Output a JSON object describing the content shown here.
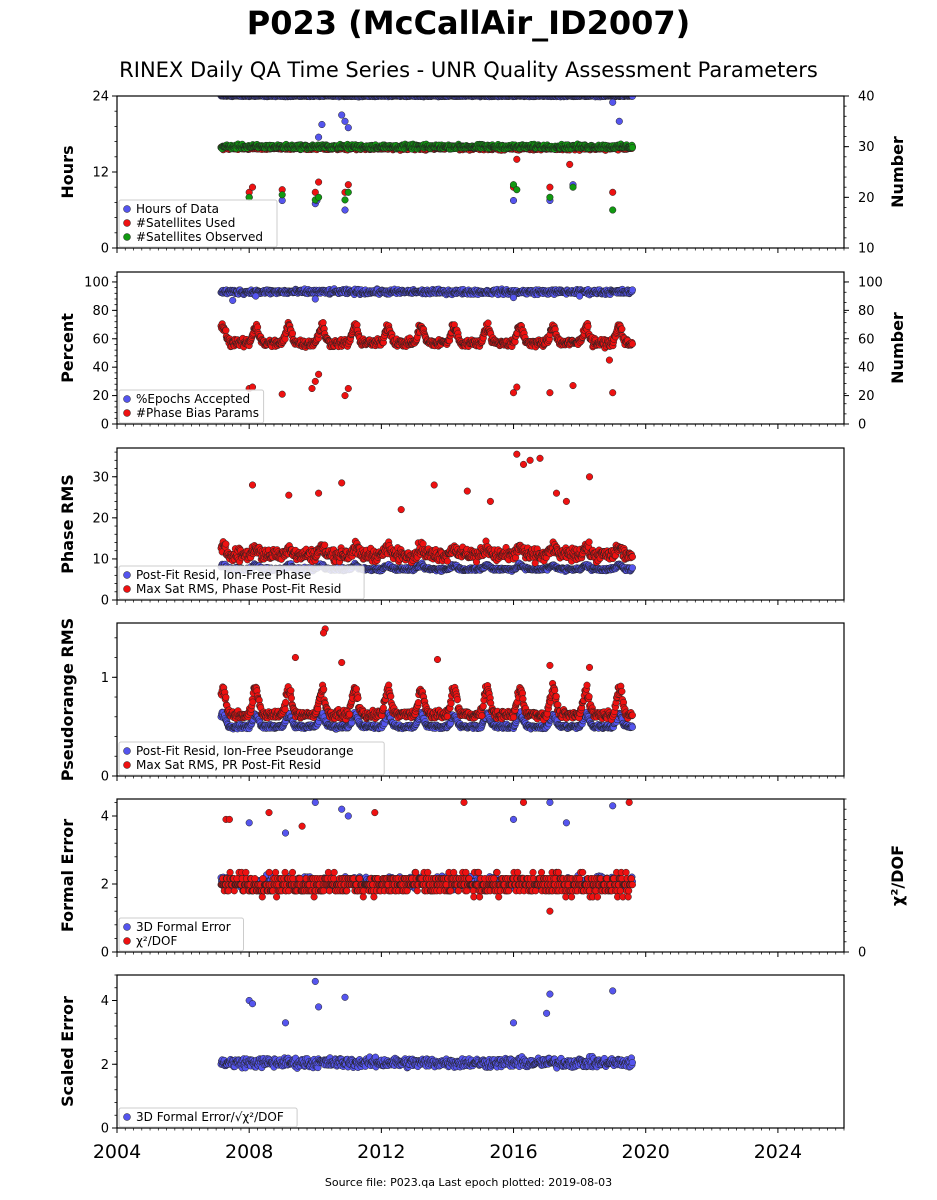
{
  "title": "P023 (McCallAir_ID2007)",
  "subtitle": "RINEX Daily QA Time Series - UNR Quality Assessment Parameters",
  "footer": "Source file: P023.qa Last epoch plotted: 2019-08-03",
  "colors": {
    "blue": "#5555ee",
    "red": "#ee1111",
    "green": "#119911",
    "edge": "#222222"
  },
  "chart_data": [
    {
      "type": "scatter",
      "panel": "hours",
      "ylabel": "Hours",
      "ylabel_right": "Number",
      "ylim": [
        0,
        24
      ],
      "yticks": [
        0,
        12,
        24
      ],
      "ylim_right": [
        10,
        40
      ],
      "yticks_right": [
        10,
        20,
        30,
        40
      ],
      "xlim": [
        2004,
        2026
      ],
      "x_range_data": [
        2007.15,
        2019.6
      ],
      "legend_position": "lower-left",
      "series": [
        {
          "name": "Hours of Data",
          "color": "blue",
          "axis": "left",
          "base": 24,
          "jitter": 0.15,
          "outliers": [
            [
              2008.0,
              8
            ],
            [
              2009.0,
              7.5
            ],
            [
              2010.0,
              7
            ],
            [
              2010.05,
              7.5
            ],
            [
              2010.1,
              17.5
            ],
            [
              2010.2,
              19.5
            ],
            [
              2010.8,
              21
            ],
            [
              2010.9,
              20
            ],
            [
              2011.0,
              19
            ],
            [
              2010.9,
              6
            ],
            [
              2016.0,
              7.5
            ],
            [
              2017.1,
              7.5
            ],
            [
              2017.8,
              10
            ],
            [
              2019.0,
              23
            ],
            [
              2019.2,
              20
            ]
          ]
        },
        {
          "name": "#Satellites Used",
          "color": "red",
          "axis": "right",
          "base": 29.7,
          "jitter": 0.5,
          "outliers": [
            [
              2008.0,
              21
            ],
            [
              2008.1,
              22
            ],
            [
              2009.0,
              21.5
            ],
            [
              2010.0,
              21
            ],
            [
              2010.1,
              23
            ],
            [
              2010.9,
              21
            ],
            [
              2011.0,
              22.5
            ],
            [
              2016.0,
              22
            ],
            [
              2016.1,
              27.5
            ],
            [
              2017.1,
              22
            ],
            [
              2017.7,
              26.5
            ],
            [
              2019.0,
              21
            ]
          ]
        },
        {
          "name": "#Satellites Observed",
          "color": "green",
          "axis": "right",
          "base": 30,
          "jitter": 0.6,
          "outliers": [
            [
              2008.0,
              20
            ],
            [
              2009.0,
              20.5
            ],
            [
              2010.0,
              19.5
            ],
            [
              2010.1,
              20
            ],
            [
              2010.9,
              19.5
            ],
            [
              2011.0,
              21
            ],
            [
              2016.0,
              22.5
            ],
            [
              2016.1,
              21.5
            ],
            [
              2017.1,
              20
            ],
            [
              2017.8,
              22
            ],
            [
              2019.0,
              17.5
            ]
          ]
        }
      ]
    },
    {
      "type": "scatter",
      "panel": "percent",
      "ylabel": "Percent",
      "ylabel_right": "Number",
      "ylim": [
        0,
        107
      ],
      "yticks": [
        0,
        20,
        40,
        60,
        80,
        100
      ],
      "ylim_right": [
        0,
        107
      ],
      "yticks_right": [
        0,
        20,
        40,
        60,
        80,
        100
      ],
      "xlim": [
        2004,
        2026
      ],
      "x_range_data": [
        2007.15,
        2019.6
      ],
      "legend_position": "lower-left",
      "series": [
        {
          "name": "%Epochs Accepted",
          "color": "blue",
          "axis": "left",
          "base": 93,
          "jitter": 2.5,
          "outliers": [
            [
              2007.5,
              87
            ],
            [
              2008.2,
              90
            ],
            [
              2010.0,
              88
            ],
            [
              2016.0,
              89
            ],
            [
              2018.0,
              90
            ]
          ]
        },
        {
          "name": "#Phase Bias Params",
          "color": "red",
          "axis": "right",
          "base": 57,
          "jitter": 4,
          "seasonal": 10,
          "outliers": [
            [
              2008.0,
              25
            ],
            [
              2008.1,
              26
            ],
            [
              2009.0,
              21
            ],
            [
              2009.9,
              25
            ],
            [
              2010.0,
              30
            ],
            [
              2010.1,
              35
            ],
            [
              2010.9,
              20
            ],
            [
              2011.0,
              25
            ],
            [
              2016.0,
              22
            ],
            [
              2016.1,
              26
            ],
            [
              2017.1,
              22
            ],
            [
              2017.8,
              27
            ],
            [
              2019.0,
              22
            ],
            [
              2018.9,
              45
            ]
          ]
        }
      ]
    },
    {
      "type": "scatter",
      "panel": "phase",
      "ylabel": "Phase RMS",
      "ylim": [
        0,
        37
      ],
      "yticks": [
        0,
        10,
        20,
        30
      ],
      "xlim": [
        2004,
        2026
      ],
      "x_range_data": [
        2007.15,
        2019.6
      ],
      "legend_position": "lower-left",
      "series": [
        {
          "name": "Post-Fit Resid, Ion-Free Phase",
          "color": "blue",
          "axis": "left",
          "base": 7.5,
          "jitter": 0.6,
          "seasonal": 0.8,
          "outliers": []
        },
        {
          "name": "Max Sat RMS, Phase Post-Fit Resid",
          "color": "red",
          "axis": "left",
          "base": 11,
          "jitter": 2.2,
          "seasonal": 1.5,
          "outliers": [
            [
              2008.1,
              28
            ],
            [
              2009.2,
              25.5
            ],
            [
              2010.1,
              26
            ],
            [
              2010.8,
              28.5
            ],
            [
              2013.6,
              28
            ],
            [
              2014.6,
              26.5
            ],
            [
              2016.1,
              35.5
            ],
            [
              2016.3,
              33
            ],
            [
              2016.5,
              34
            ],
            [
              2016.8,
              34.5
            ],
            [
              2017.3,
              26
            ],
            [
              2017.6,
              24
            ],
            [
              2018.3,
              30
            ],
            [
              2015.3,
              24
            ],
            [
              2012.6,
              22
            ]
          ]
        }
      ]
    },
    {
      "type": "scatter",
      "panel": "pseudorange",
      "ylabel": "Pseudorange RMS",
      "ylim": [
        0,
        1.55
      ],
      "yticks": [
        0,
        1
      ],
      "xlim": [
        2004,
        2026
      ],
      "x_range_data": [
        2007.15,
        2019.6
      ],
      "legend_position": "lower-left",
      "series": [
        {
          "name": "Post-Fit Resid, Ion-Free Pseudorange",
          "color": "blue",
          "axis": "left",
          "base": 0.5,
          "jitter": 0.03,
          "seasonal": 0.1,
          "outliers": []
        },
        {
          "name": "Max Sat RMS, PR Post-Fit Resid",
          "color": "red",
          "axis": "left",
          "base": 0.62,
          "jitter": 0.06,
          "seasonal": 0.22,
          "outliers": [
            [
              2010.3,
              1.49
            ],
            [
              2010.25,
              1.45
            ],
            [
              2009.4,
              1.2
            ],
            [
              2010.8,
              1.15
            ],
            [
              2013.7,
              1.18
            ],
            [
              2017.1,
              1.12
            ],
            [
              2018.3,
              1.1
            ]
          ]
        }
      ]
    },
    {
      "type": "scatter",
      "panel": "formal",
      "ylabel": "Formal Error",
      "ylabel_right": "χ²/DOF",
      "ylim": [
        0,
        4.5
      ],
      "yticks": [
        0,
        2,
        4
      ],
      "ylim_right": [
        0,
        4.5
      ],
      "yticks_right": [
        0
      ],
      "xlim": [
        2004,
        2026
      ],
      "x_range_data": [
        2007.15,
        2019.6
      ],
      "legend_position": "lower-left",
      "series": [
        {
          "name": "3D Formal Error",
          "color": "blue",
          "axis": "left",
          "base": 2.05,
          "jitter": 0.25,
          "outliers": [
            [
              2008.0,
              3.8
            ],
            [
              2009.1,
              3.5
            ],
            [
              2010.0,
              4.4
            ],
            [
              2010.8,
              4.2
            ],
            [
              2011.0,
              4.0
            ],
            [
              2016.0,
              3.9
            ],
            [
              2017.1,
              4.4
            ],
            [
              2017.6,
              3.8
            ],
            [
              2019.0,
              4.3
            ]
          ]
        },
        {
          "name": "χ²/DOF",
          "color": "red",
          "axis": "left",
          "base": 2.0,
          "jitter": 0.45,
          "quantize": 0.18,
          "outliers": [
            [
              2007.3,
              3.9
            ],
            [
              2007.4,
              3.9
            ],
            [
              2008.6,
              4.1
            ],
            [
              2009.6,
              3.7
            ],
            [
              2011.8,
              4.1
            ],
            [
              2014.5,
              4.4
            ],
            [
              2016.3,
              4.4
            ],
            [
              2019.5,
              4.4
            ],
            [
              2017.1,
              1.2
            ]
          ]
        }
      ]
    },
    {
      "type": "scatter",
      "panel": "scaled",
      "ylabel": "Scaled Error",
      "ylim": [
        0,
        4.8
      ],
      "yticks": [
        0,
        2,
        4
      ],
      "xlim": [
        2004,
        2026
      ],
      "x_range_data": [
        2007.15,
        2019.6
      ],
      "xticks": [
        2004,
        2008,
        2012,
        2016,
        2020,
        2024
      ],
      "legend_position": "lower-left",
      "series": [
        {
          "name": "3D Formal Error/√χ²/DOF",
          "color": "blue",
          "axis": "left",
          "base": 2.05,
          "jitter": 0.22,
          "outliers": [
            [
              2008.0,
              4.0
            ],
            [
              2008.1,
              3.9
            ],
            [
              2010.0,
              4.6
            ],
            [
              2010.1,
              3.8
            ],
            [
              2010.9,
              4.1
            ],
            [
              2016.0,
              3.3
            ],
            [
              2017.1,
              4.2
            ],
            [
              2017.0,
              3.6
            ],
            [
              2019.0,
              4.3
            ],
            [
              2009.1,
              3.3
            ]
          ]
        }
      ]
    }
  ]
}
